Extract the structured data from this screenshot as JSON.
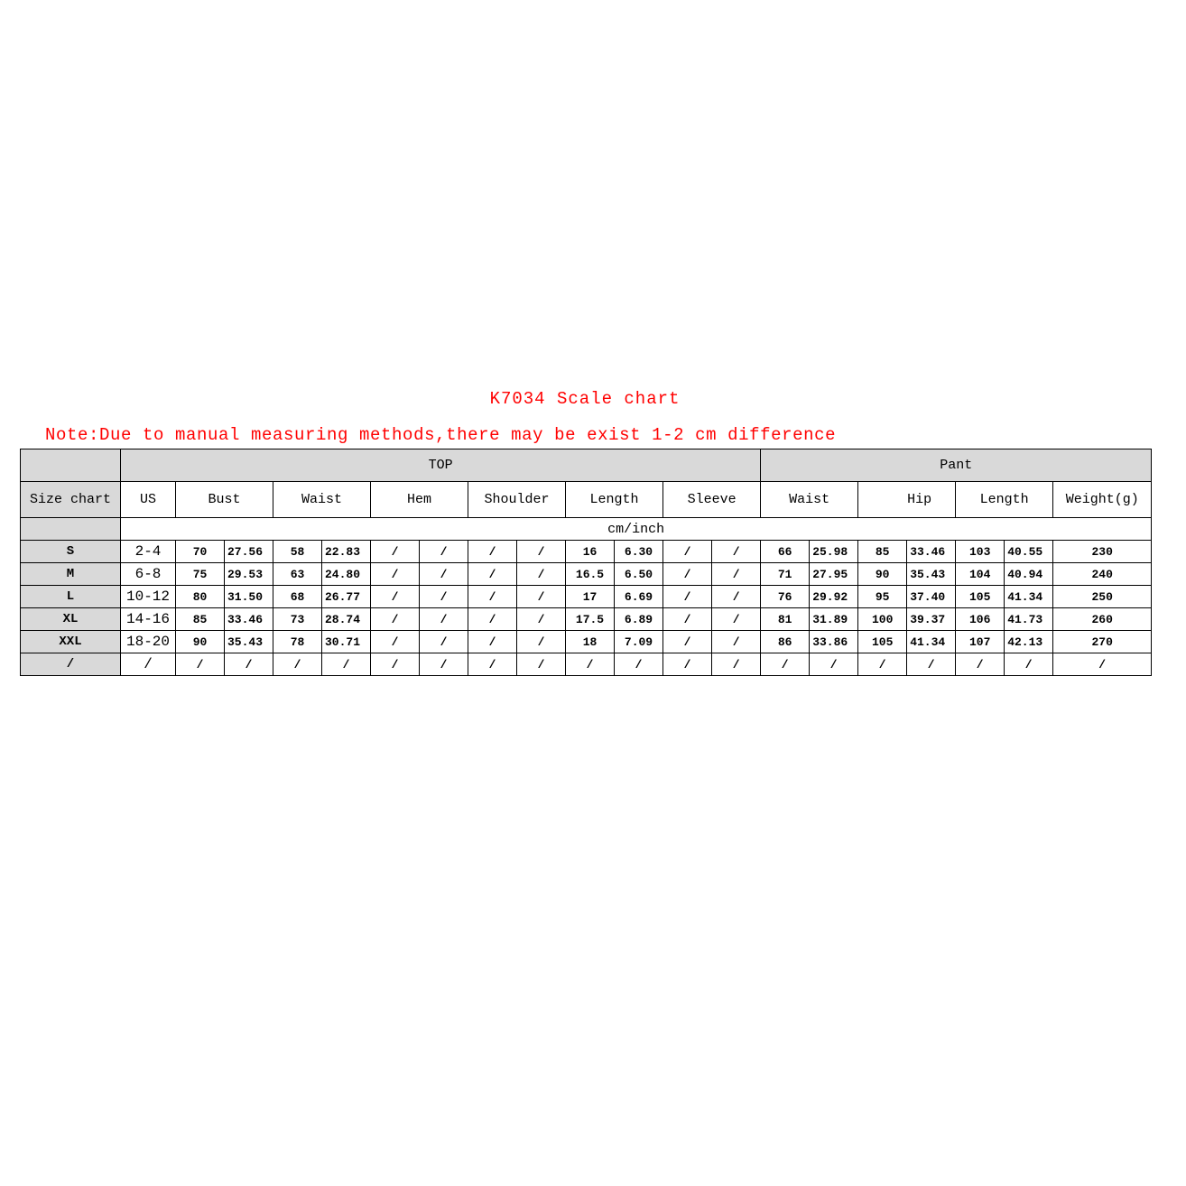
{
  "title": "K7034 Scale chart",
  "note": "Note:Due to manual measuring methods,there may be exist 1-2 cm difference",
  "colors": {
    "text_accent": "#ff0000",
    "header_fill": "#d9d9d9"
  },
  "table": {
    "group_headers": {
      "top": "TOP",
      "pant": "Pant"
    },
    "columns": {
      "size_chart": "Size chart",
      "us": "US",
      "bust": "Bust",
      "waist": "Waist",
      "hem": "Hem",
      "shoulder": "Shoulder",
      "length": "Length",
      "sleeve": "Sleeve",
      "pant_waist": "Waist",
      "hip": "Hip",
      "pant_length": "Length",
      "weight": "Weight(g)"
    },
    "unit": "cm/inch",
    "rows": [
      {
        "size": "S",
        "us": "2-4",
        "cells": [
          "70",
          "27.56",
          "58",
          "22.83",
          "/",
          "/",
          "/",
          "/",
          "16",
          "6.30",
          "/",
          "/",
          "66",
          "25.98",
          "85",
          "33.46",
          "103",
          "40.55",
          "230"
        ]
      },
      {
        "size": "M",
        "us": "6-8",
        "cells": [
          "75",
          "29.53",
          "63",
          "24.80",
          "/",
          "/",
          "/",
          "/",
          "16.5",
          "6.50",
          "/",
          "/",
          "71",
          "27.95",
          "90",
          "35.43",
          "104",
          "40.94",
          "240"
        ]
      },
      {
        "size": "L",
        "us": "10-12",
        "cells": [
          "80",
          "31.50",
          "68",
          "26.77",
          "/",
          "/",
          "/",
          "/",
          "17",
          "6.69",
          "/",
          "/",
          "76",
          "29.92",
          "95",
          "37.40",
          "105",
          "41.34",
          "250"
        ]
      },
      {
        "size": "XL",
        "us": "14-16",
        "cells": [
          "85",
          "33.46",
          "73",
          "28.74",
          "/",
          "/",
          "/",
          "/",
          "17.5",
          "6.89",
          "/",
          "/",
          "81",
          "31.89",
          "100",
          "39.37",
          "106",
          "41.73",
          "260"
        ]
      },
      {
        "size": "XXL",
        "us": "18-20",
        "cells": [
          "90",
          "35.43",
          "78",
          "30.71",
          "/",
          "/",
          "/",
          "/",
          "18",
          "7.09",
          "/",
          "/",
          "86",
          "33.86",
          "105",
          "41.34",
          "107",
          "42.13",
          "270"
        ]
      },
      {
        "size": "/",
        "us": "/",
        "cells": [
          "/",
          "/",
          "/",
          "/",
          "/",
          "/",
          "/",
          "/",
          "/",
          "/",
          "/",
          "/",
          "/",
          "/",
          "/",
          "/",
          "/",
          "/",
          "/"
        ]
      }
    ]
  }
}
